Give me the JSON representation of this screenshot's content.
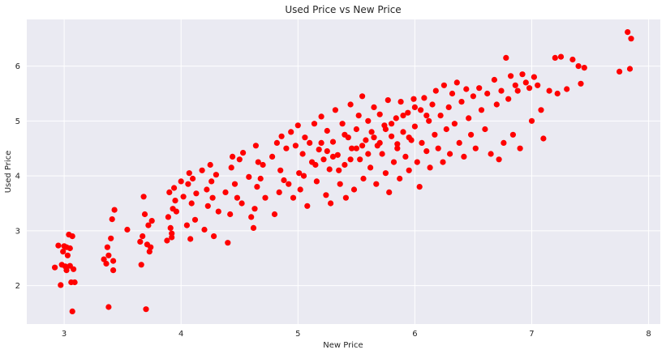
{
  "chart_data": {
    "type": "scatter",
    "title": "Used Price vs New Price",
    "xlabel": "New Price",
    "ylabel": "Used Price",
    "xlim": [
      2.68,
      8.1
    ],
    "ylim": [
      1.3,
      6.85
    ],
    "xticks": [
      3,
      4,
      5,
      6,
      7,
      8
    ],
    "yticks": [
      2,
      3,
      4,
      5,
      6
    ],
    "grid": true,
    "legend": "none",
    "colors": {
      "background": "#eaeaf2",
      "grid": "#ffffff",
      "marker": "#ff0000"
    },
    "series": [
      {
        "color": "#ff0000",
        "points": [
          [
            2.92,
            2.33
          ],
          [
            2.95,
            2.73
          ],
          [
            2.97,
            2.01
          ],
          [
            2.98,
            2.38
          ],
          [
            2.99,
            2.62
          ],
          [
            3.0,
            2.72
          ],
          [
            3.01,
            2.35
          ],
          [
            3.02,
            2.28
          ],
          [
            3.03,
            2.55
          ],
          [
            3.04,
            2.93
          ],
          [
            3.05,
            2.36
          ],
          [
            3.05,
            2.68
          ],
          [
            3.06,
            2.06
          ],
          [
            3.07,
            2.9
          ],
          [
            3.07,
            1.53
          ],
          [
            3.08,
            2.3
          ],
          [
            3.09,
            2.06
          ],
          [
            3.02,
            2.7
          ],
          [
            3.34,
            2.48
          ],
          [
            3.36,
            2.4
          ],
          [
            3.37,
            2.7
          ],
          [
            3.38,
            2.55
          ],
          [
            3.38,
            1.61
          ],
          [
            3.4,
            2.86
          ],
          [
            3.41,
            3.21
          ],
          [
            3.42,
            2.28
          ],
          [
            3.43,
            3.38
          ],
          [
            3.42,
            2.45
          ],
          [
            3.54,
            3.02
          ],
          [
            3.65,
            2.8
          ],
          [
            3.66,
            2.38
          ],
          [
            3.67,
            2.9
          ],
          [
            3.68,
            3.62
          ],
          [
            3.69,
            3.3
          ],
          [
            3.7,
            1.57
          ],
          [
            3.71,
            2.75
          ],
          [
            3.72,
            3.1
          ],
          [
            3.73,
            2.62
          ],
          [
            3.75,
            3.18
          ],
          [
            3.74,
            2.7
          ],
          [
            3.88,
            2.82
          ],
          [
            3.89,
            3.25
          ],
          [
            3.9,
            3.7
          ],
          [
            3.91,
            3.05
          ],
          [
            3.92,
            2.88
          ],
          [
            3.93,
            3.4
          ],
          [
            3.94,
            3.78
          ],
          [
            3.95,
            3.55
          ],
          [
            3.96,
            3.35
          ],
          [
            3.92,
            2.95
          ],
          [
            4.0,
            3.9
          ],
          [
            4.02,
            3.62
          ],
          [
            4.05,
            3.1
          ],
          [
            4.06,
            3.85
          ],
          [
            4.07,
            4.05
          ],
          [
            4.08,
            2.85
          ],
          [
            4.09,
            3.5
          ],
          [
            4.1,
            3.95
          ],
          [
            4.12,
            3.2
          ],
          [
            4.13,
            3.68
          ],
          [
            4.18,
            4.1
          ],
          [
            4.2,
            3.02
          ],
          [
            4.22,
            3.75
          ],
          [
            4.23,
            3.45
          ],
          [
            4.25,
            4.2
          ],
          [
            4.26,
            3.9
          ],
          [
            4.27,
            3.6
          ],
          [
            4.28,
            2.9
          ],
          [
            4.3,
            4.02
          ],
          [
            4.32,
            3.35
          ],
          [
            4.38,
            3.7
          ],
          [
            4.4,
            2.78
          ],
          [
            4.42,
            3.3
          ],
          [
            4.43,
            4.15
          ],
          [
            4.44,
            4.35
          ],
          [
            4.46,
            3.85
          ],
          [
            4.48,
            3.6
          ],
          [
            4.5,
            4.3
          ],
          [
            4.52,
            3.5
          ],
          [
            4.53,
            4.42
          ],
          [
            4.58,
            3.98
          ],
          [
            4.6,
            3.25
          ],
          [
            4.62,
            3.05
          ],
          [
            4.63,
            3.4
          ],
          [
            4.64,
            4.55
          ],
          [
            4.65,
            3.8
          ],
          [
            4.66,
            4.25
          ],
          [
            4.68,
            3.95
          ],
          [
            4.7,
            4.2
          ],
          [
            4.72,
            3.6
          ],
          [
            4.78,
            4.35
          ],
          [
            4.8,
            3.3
          ],
          [
            4.82,
            4.6
          ],
          [
            4.84,
            3.7
          ],
          [
            4.85,
            4.1
          ],
          [
            4.86,
            4.72
          ],
          [
            4.88,
            3.92
          ],
          [
            4.9,
            4.5
          ],
          [
            4.92,
            3.85
          ],
          [
            4.94,
            4.8
          ],
          [
            4.96,
            3.6
          ],
          [
            4.98,
            4.55
          ],
          [
            5.0,
            4.92
          ],
          [
            5.01,
            4.05
          ],
          [
            5.02,
            3.75
          ],
          [
            5.04,
            4.4
          ],
          [
            5.06,
            4.7
          ],
          [
            5.08,
            3.45
          ],
          [
            5.1,
            4.6
          ],
          [
            5.12,
            4.25
          ],
          [
            5.14,
            4.95
          ],
          [
            5.16,
            3.9
          ],
          [
            5.18,
            4.48
          ],
          [
            5.2,
            5.08
          ],
          [
            5.22,
            4.3
          ],
          [
            5.24,
            3.65
          ],
          [
            5.25,
            4.82
          ],
          [
            5.27,
            4.12
          ],
          [
            5.28,
            3.5
          ],
          [
            5.3,
            4.62
          ],
          [
            5.32,
            5.2
          ],
          [
            5.34,
            4.38
          ],
          [
            5.36,
            3.85
          ],
          [
            5.38,
            4.95
          ],
          [
            5.4,
            4.2
          ],
          [
            5.41,
            3.6
          ],
          [
            5.43,
            4.7
          ],
          [
            5.45,
            5.3
          ],
          [
            5.46,
            4.5
          ],
          [
            5.48,
            3.75
          ],
          [
            5.5,
            4.85
          ],
          [
            5.52,
            5.1
          ],
          [
            5.53,
            4.3
          ],
          [
            5.55,
            5.45
          ],
          [
            5.56,
            3.95
          ],
          [
            5.58,
            4.65
          ],
          [
            5.6,
            5.0
          ],
          [
            5.62,
            4.15
          ],
          [
            5.63,
            4.8
          ],
          [
            5.65,
            5.25
          ],
          [
            5.67,
            3.85
          ],
          [
            5.68,
            4.55
          ],
          [
            5.7,
            5.12
          ],
          [
            5.72,
            4.4
          ],
          [
            5.74,
            4.92
          ],
          [
            5.75,
            4.05
          ],
          [
            5.77,
            5.38
          ],
          [
            5.78,
            3.7
          ],
          [
            5.8,
            4.72
          ],
          [
            5.82,
            4.25
          ],
          [
            5.84,
            5.05
          ],
          [
            5.85,
            4.58
          ],
          [
            5.87,
            3.95
          ],
          [
            5.88,
            5.35
          ],
          [
            5.9,
            4.8
          ],
          [
            5.92,
            4.35
          ],
          [
            5.94,
            5.15
          ],
          [
            5.95,
            4.1
          ],
          [
            5.97,
            4.65
          ],
          [
            5.99,
            5.4
          ],
          [
            6.0,
            4.9
          ],
          [
            6.02,
            4.25
          ],
          [
            6.04,
            3.8
          ],
          [
            6.05,
            5.2
          ],
          [
            6.06,
            4.6
          ],
          [
            6.08,
            5.42
          ],
          [
            6.1,
            4.45
          ],
          [
            6.12,
            5.0
          ],
          [
            6.13,
            4.15
          ],
          [
            6.15,
            5.3
          ],
          [
            6.17,
            4.75
          ],
          [
            6.18,
            5.55
          ],
          [
            6.2,
            4.5
          ],
          [
            6.22,
            5.1
          ],
          [
            6.24,
            4.25
          ],
          [
            6.25,
            5.65
          ],
          [
            6.27,
            4.85
          ],
          [
            6.29,
            5.25
          ],
          [
            6.3,
            4.4
          ],
          [
            6.32,
            5.5
          ],
          [
            6.34,
            4.95
          ],
          [
            6.36,
            5.7
          ],
          [
            6.38,
            4.6
          ],
          [
            6.4,
            5.35
          ],
          [
            6.42,
            4.35
          ],
          [
            6.44,
            5.58
          ],
          [
            6.46,
            5.05
          ],
          [
            6.48,
            4.75
          ],
          [
            6.5,
            5.45
          ],
          [
            6.52,
            4.5
          ],
          [
            6.55,
            5.6
          ],
          [
            6.57,
            5.2
          ],
          [
            6.6,
            4.85
          ],
          [
            6.62,
            5.5
          ],
          [
            6.65,
            4.4
          ],
          [
            6.68,
            5.75
          ],
          [
            6.7,
            5.3
          ],
          [
            6.72,
            4.3
          ],
          [
            6.74,
            5.55
          ],
          [
            6.76,
            4.6
          ],
          [
            6.78,
            6.15
          ],
          [
            6.8,
            5.4
          ],
          [
            6.82,
            5.82
          ],
          [
            6.84,
            4.75
          ],
          [
            6.86,
            5.65
          ],
          [
            6.88,
            5.55
          ],
          [
            6.9,
            4.5
          ],
          [
            6.92,
            5.85
          ],
          [
            6.95,
            5.7
          ],
          [
            6.98,
            5.6
          ],
          [
            7.0,
            5.0
          ],
          [
            7.02,
            5.8
          ],
          [
            7.05,
            5.65
          ],
          [
            7.08,
            5.2
          ],
          [
            7.1,
            4.68
          ],
          [
            7.15,
            5.55
          ],
          [
            7.2,
            6.15
          ],
          [
            7.22,
            5.5
          ],
          [
            7.25,
            6.17
          ],
          [
            7.3,
            5.58
          ],
          [
            7.35,
            6.12
          ],
          [
            7.4,
            6.0
          ],
          [
            7.42,
            5.68
          ],
          [
            7.45,
            5.97
          ],
          [
            7.75,
            5.9
          ],
          [
            7.82,
            6.62
          ],
          [
            7.84,
            5.95
          ],
          [
            7.85,
            6.5
          ],
          [
            5.35,
            4.1
          ],
          [
            5.45,
            4.3
          ],
          [
            5.55,
            4.55
          ],
          [
            5.65,
            4.7
          ],
          [
            5.75,
            4.85
          ],
          [
            5.25,
            4.45
          ],
          [
            5.15,
            4.2
          ],
          [
            5.05,
            4.0
          ],
          [
            5.6,
            4.4
          ],
          [
            5.7,
            4.6
          ],
          [
            5.4,
            4.75
          ],
          [
            5.5,
            4.5
          ],
          [
            5.3,
            4.35
          ],
          [
            5.2,
            4.6
          ],
          [
            5.8,
            4.95
          ],
          [
            5.9,
            5.1
          ],
          [
            6.0,
            5.25
          ],
          [
            5.85,
            4.5
          ],
          [
            5.95,
            4.7
          ],
          [
            6.1,
            5.1
          ]
        ]
      }
    ]
  }
}
